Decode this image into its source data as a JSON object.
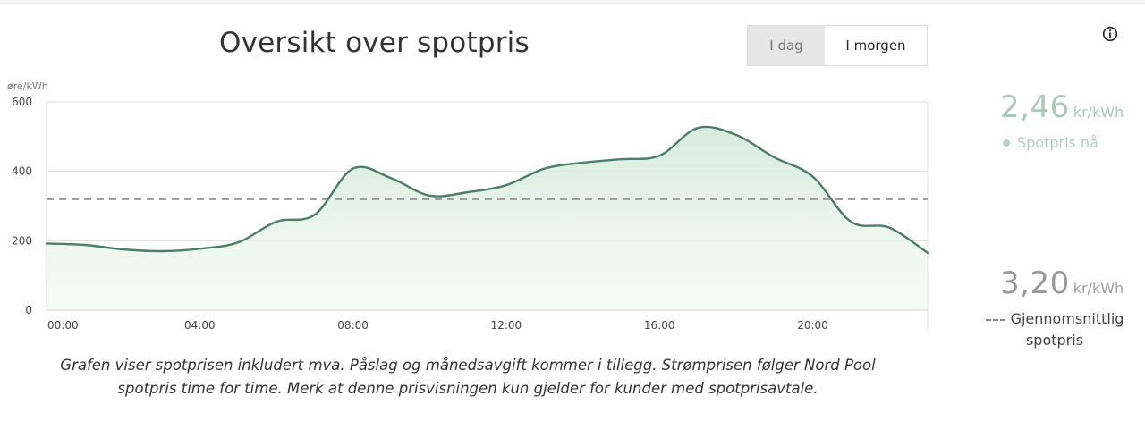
{
  "header": {
    "title": "Oversikt over spotpris"
  },
  "toggle": {
    "today_label": "I dag",
    "tomorrow_label": "I morgen",
    "selected": "I morgen"
  },
  "info": {
    "icon": "info-icon"
  },
  "sidebar": {
    "spot_now": {
      "value": "2,46",
      "unit": "kr/kWh",
      "label": "Spotpris nå",
      "color": "#aac9bb"
    },
    "average": {
      "value": "3,20",
      "unit": "kr/kWh",
      "label_line1": "Gjennomsnittlig",
      "label_line2": "spotpris"
    }
  },
  "caption": "Grafen viser spotprisen inkludert mva. Påslag og månedsavgift kommer i tillegg. Strømprisen følger Nord Pool spotpris time for time. Merk at denne prisvisningen kun gjelder for kunder med spotprisavtale.",
  "colors": {
    "line": "#4a7d6b",
    "fill": "#e8f3ec",
    "average_line": "#999999"
  },
  "chart_data": {
    "type": "area",
    "ylabel": "øre/kWh",
    "ylim": [
      0,
      600
    ],
    "yticks": [
      "0",
      "200",
      "400",
      "600"
    ],
    "xlim": [
      0,
      23
    ],
    "xticks": [
      {
        "hour": 0,
        "label": "00:00"
      },
      {
        "hour": 4,
        "label": "04:00"
      },
      {
        "hour": 8,
        "label": "08:00"
      },
      {
        "hour": 12,
        "label": "12:00"
      },
      {
        "hour": 16,
        "label": "16:00"
      },
      {
        "hour": 20,
        "label": "20:00"
      }
    ],
    "x": [
      0,
      1,
      2,
      3,
      4,
      5,
      6,
      7,
      8,
      9,
      10,
      11,
      12,
      13,
      14,
      15,
      16,
      17,
      18,
      19,
      20,
      21,
      22,
      23
    ],
    "series": [
      {
        "values": [
          192,
          188,
          175,
          170,
          177,
          195,
          255,
          275,
          408,
          380,
          330,
          340,
          360,
          408,
          425,
          435,
          445,
          525,
          505,
          440,
          385,
          255,
          238,
          165
        ]
      }
    ],
    "average": 320,
    "grid": true
  }
}
